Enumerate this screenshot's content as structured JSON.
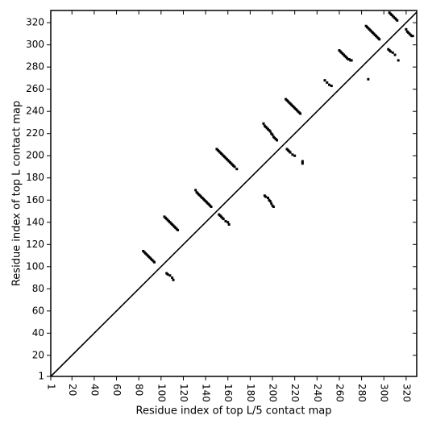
{
  "chart_data": {
    "type": "scatter",
    "x_label": "Residue index of top L/5 contact map",
    "y_label": "Residue index of top L contact map",
    "xlim": [
      1,
      329.5
    ],
    "ylim": [
      1,
      331
    ],
    "xticks": [
      1,
      20,
      40,
      60,
      80,
      100,
      120,
      140,
      160,
      180,
      200,
      220,
      240,
      260,
      280,
      300,
      320
    ],
    "yticks": [
      1,
      20,
      40,
      60,
      80,
      100,
      120,
      140,
      160,
      180,
      200,
      220,
      240,
      260,
      280,
      300,
      320
    ],
    "diagonal": true,
    "diagonal_color": "#000000",
    "series": [
      {
        "color": "#000000",
        "x": [
          84,
          85,
          86,
          87,
          88,
          89,
          90,
          91,
          92,
          93,
          94,
          103,
          104,
          105,
          106,
          107,
          108,
          109,
          110,
          111,
          112,
          113,
          114,
          115,
          131,
          132,
          133,
          134,
          135,
          136,
          137,
          138,
          139,
          140,
          141,
          142,
          143,
          144,
          145,
          150,
          151,
          152,
          153,
          154,
          155,
          156,
          157,
          158,
          159,
          160,
          161,
          162,
          163,
          164,
          165,
          166,
          168,
          192,
          193,
          194,
          195,
          196,
          197,
          198,
          199,
          200,
          201,
          202,
          203,
          204,
          212,
          213,
          214,
          215,
          216,
          217,
          218,
          219,
          220,
          221,
          222,
          223,
          224,
          225,
          247,
          249,
          251,
          253,
          260,
          261,
          262,
          263,
          264,
          265,
          266,
          267,
          268,
          269,
          270,
          271,
          284,
          285,
          286,
          287,
          288,
          289,
          290,
          291,
          292,
          293,
          294,
          295,
          296,
          305,
          306,
          307,
          308,
          309,
          310,
          311,
          312
        ],
        "values": [
          114,
          113,
          112,
          111,
          110,
          109,
          108,
          107,
          106,
          105,
          104,
          145,
          144,
          143,
          142,
          141,
          140,
          139,
          138,
          137,
          136,
          135,
          134,
          133,
          169,
          167,
          166,
          165,
          164,
          163,
          162,
          161,
          160,
          159,
          158,
          157,
          156,
          155,
          154,
          206,
          205,
          204,
          203,
          202,
          201,
          200,
          199,
          198,
          197,
          196,
          195,
          194,
          193,
          192,
          191,
          190,
          188,
          229,
          227,
          226,
          225,
          224,
          223,
          222,
          220,
          219,
          217,
          216,
          215,
          214,
          251,
          250,
          249,
          248,
          247,
          246,
          245,
          244,
          243,
          242,
          241,
          240,
          239,
          238,
          268,
          266,
          264,
          263,
          295,
          294,
          293,
          292,
          291,
          290,
          289,
          288,
          287,
          287,
          286,
          286,
          317,
          316,
          315,
          314,
          313,
          312,
          311,
          310,
          309,
          308,
          307,
          306,
          305,
          329,
          328,
          327,
          326,
          325,
          324,
          323,
          322
        ]
      },
      {
        "color": "#000000",
        "x": [
          105,
          106,
          108,
          110,
          111,
          152,
          153,
          154,
          155,
          156,
          158,
          160,
          161,
          193,
          194,
          196,
          197,
          198,
          199,
          200,
          201,
          213,
          214,
          215,
          216,
          218,
          220,
          227,
          227,
          286,
          304,
          305,
          306,
          308,
          310,
          313,
          320,
          321,
          322,
          323,
          324,
          325,
          326
        ],
        "values": [
          94,
          93,
          92,
          90,
          88,
          147,
          146,
          145,
          144,
          143,
          141,
          140,
          138,
          164,
          163,
          162,
          160,
          159,
          157,
          155,
          154,
          206,
          205,
          204,
          203,
          201,
          200,
          195,
          193,
          269,
          296,
          295,
          294,
          293,
          291,
          286,
          314,
          312,
          311,
          310,
          309,
          308,
          308
        ]
      }
    ]
  }
}
